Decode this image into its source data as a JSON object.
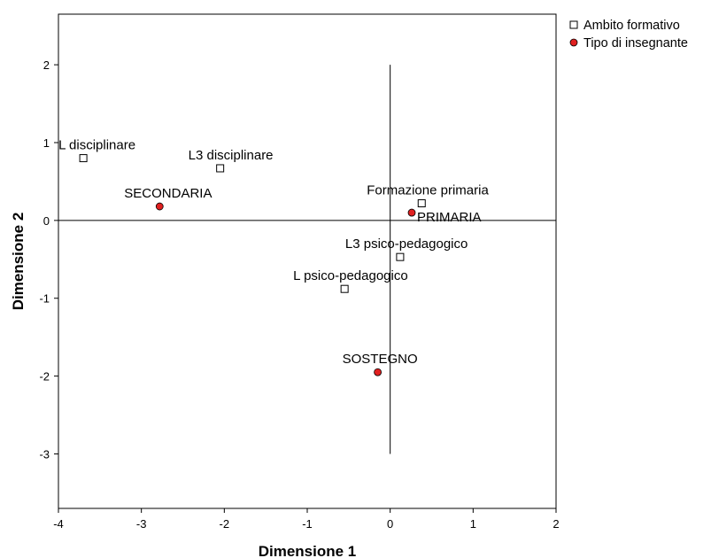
{
  "chart_data": {
    "type": "scatter",
    "xlabel": "Dimensione 1",
    "ylabel": "Dimensione 2",
    "xlim": [
      -4,
      2
    ],
    "ylim": [
      -3.7,
      2.65
    ],
    "xticks": [
      "-4",
      "-3",
      "-2",
      "-1",
      "0",
      "1",
      "2"
    ],
    "yticks": [
      "2",
      "1",
      "0",
      "-1",
      "-2",
      "-3"
    ],
    "grid": false,
    "reference_lines": {
      "horizontal_at": 0,
      "vertical_at": 0,
      "vertical_range": [
        -3,
        2
      ]
    },
    "legend_position": "top-right, outside plot",
    "series": [
      {
        "name": "Ambito formativo",
        "marker": "square-open",
        "color": "#ffffff",
        "points": [
          {
            "label": "L disciplinare",
            "x": -3.7,
            "y": 0.8
          },
          {
            "label": "L3 disciplinare",
            "x": -2.05,
            "y": 0.67
          },
          {
            "label": "Formazione primaria",
            "x": 0.38,
            "y": 0.22
          },
          {
            "label": "L3 psico-pedagogico",
            "x": 0.12,
            "y": -0.47
          },
          {
            "label": "L psico-pedagogico",
            "x": -0.55,
            "y": -0.88
          }
        ]
      },
      {
        "name": "Tipo di insegnante",
        "marker": "circle-filled",
        "color": "#e02020",
        "points": [
          {
            "label": "SECONDARIA",
            "x": -2.78,
            "y": 0.18
          },
          {
            "label": "PRIMARIA",
            "x": 0.26,
            "y": 0.1
          },
          {
            "label": "SOSTEGNO",
            "x": -0.15,
            "y": -1.95
          }
        ]
      }
    ]
  }
}
